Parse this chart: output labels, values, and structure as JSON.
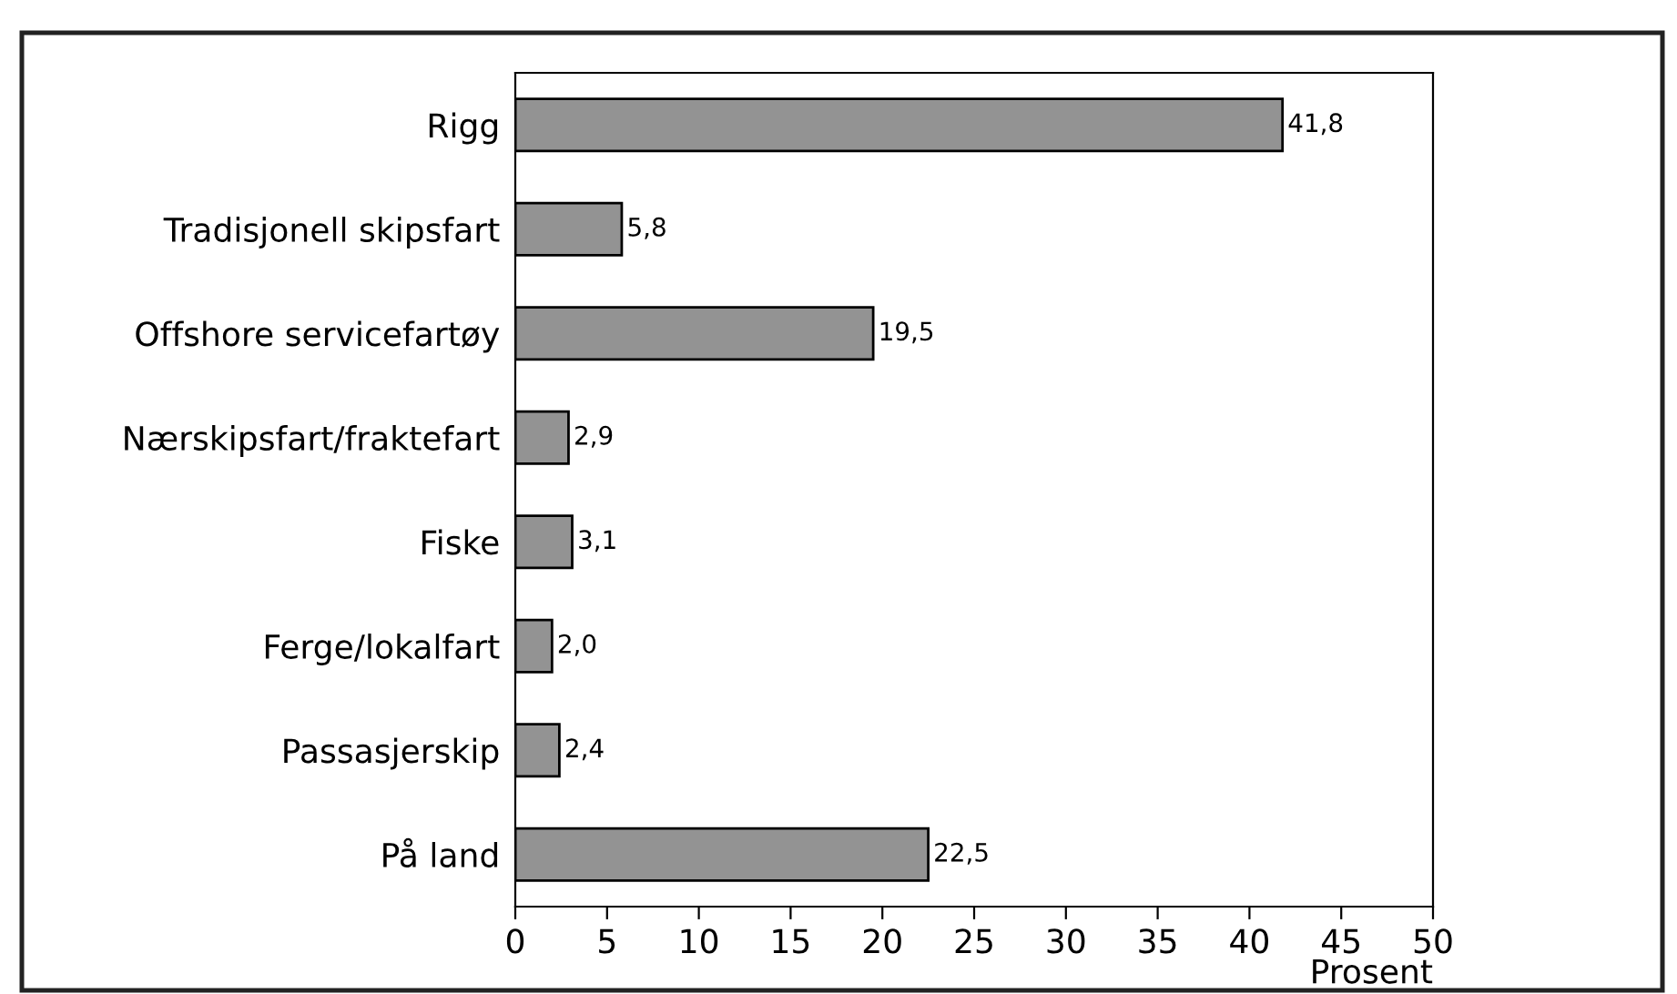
{
  "chart_data": {
    "type": "bar",
    "orientation": "horizontal",
    "xlabel": "Prosent",
    "categories": [
      "Rigg",
      "Tradisjonell skipsfart",
      "Offshore servicefartøy",
      "Nærskipsfart/fraktefart",
      "Fiske",
      "Ferge/lokalfart",
      "Passasjerskip",
      "På land"
    ],
    "values": [
      41.8,
      5.8,
      19.5,
      2.9,
      3.1,
      2.0,
      2.4,
      22.5
    ],
    "value_labels": [
      "41,8",
      "5,8",
      "19,5",
      "2,9",
      "3,1",
      "2,0",
      "2,4",
      "22,5"
    ],
    "color": "#939393",
    "xlim": [
      0,
      50
    ],
    "xticks": [
      0,
      5,
      10,
      15,
      20,
      25,
      30,
      35,
      40,
      45,
      50
    ],
    "grid": false,
    "legend": false
  }
}
